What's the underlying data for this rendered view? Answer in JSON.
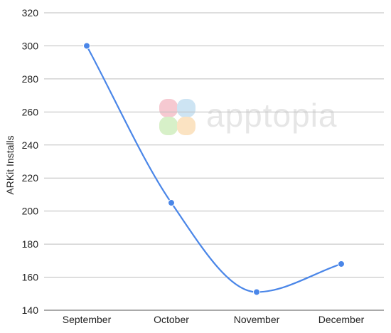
{
  "chart_data": {
    "type": "line",
    "ylabel": "ARKit Installs",
    "xlabel": "",
    "categories": [
      "September",
      "October",
      "November",
      "December"
    ],
    "values": [
      300,
      205,
      151,
      168
    ],
    "ylim": [
      140,
      320
    ],
    "yticks": [
      140,
      160,
      180,
      200,
      220,
      240,
      260,
      280,
      300,
      320
    ],
    "grid": true,
    "line_color": "#4a86e8",
    "curve": "smooth"
  },
  "watermark": {
    "text": "apptopia",
    "colors": [
      "#f6c9d1",
      "#cde4f3",
      "#d7f0c8",
      "#fbe3c2"
    ]
  }
}
